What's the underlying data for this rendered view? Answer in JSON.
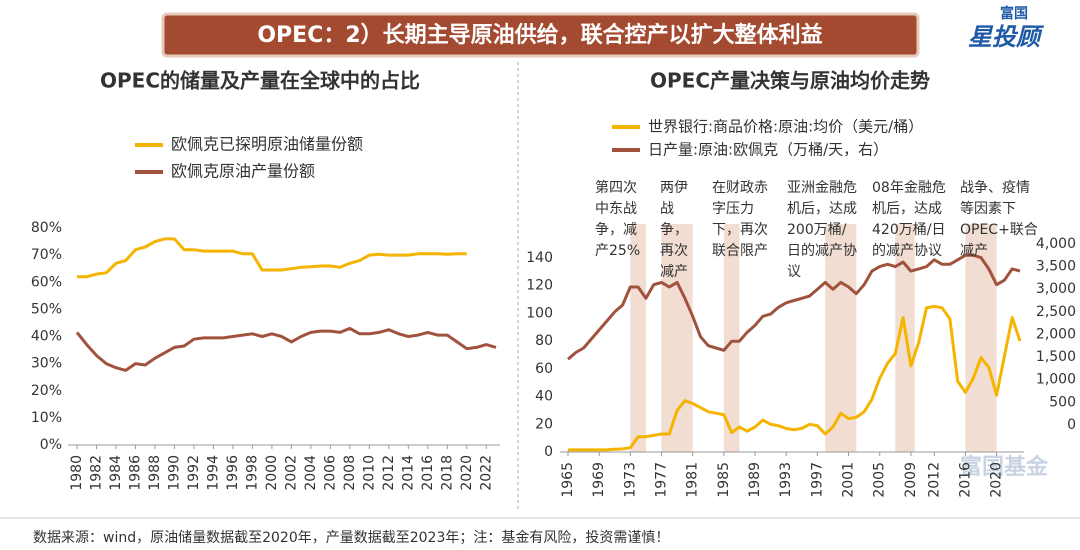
{
  "header": {
    "title": "OPEC：2）长期主导原油供给，联合控产以扩大整体利益",
    "logo_top": "富国",
    "logo_main": "星投顾"
  },
  "watermark": "富国基金",
  "footer": {
    "source": "数据来源：wind，原油储量数据截至2020年，产量数据截至2023年；注：基金有风险，投资需谨慎！"
  },
  "chart_data": [
    {
      "type": "line",
      "title": "OPEC的储量及产量在全球中的占比",
      "legend": "upper left",
      "x": [
        1980,
        1981,
        1982,
        1983,
        1984,
        1985,
        1986,
        1987,
        1988,
        1989,
        1990,
        1991,
        1992,
        1993,
        1994,
        1995,
        1996,
        1997,
        1998,
        1999,
        2000,
        2001,
        2002,
        2003,
        2004,
        2005,
        2006,
        2007,
        2008,
        2009,
        2010,
        2011,
        2012,
        2013,
        2014,
        2015,
        2016,
        2017,
        2018,
        2019,
        2020,
        2021,
        2022,
        2023
      ],
      "xlim": [
        1980,
        2023
      ],
      "xticks": [
        1980,
        1982,
        1984,
        1986,
        1988,
        1990,
        1992,
        1994,
        1996,
        1998,
        2000,
        2002,
        2004,
        2006,
        2008,
        2010,
        2012,
        2014,
        2016,
        2018,
        2020,
        2022
      ],
      "ylim": [
        0,
        80
      ],
      "yticks": [
        {
          "value": 0,
          "label": "0%"
        },
        {
          "value": 10,
          "label": "10%"
        },
        {
          "value": 20,
          "label": "20%"
        },
        {
          "value": 30,
          "label": "30%"
        },
        {
          "value": 40,
          "label": "40%"
        },
        {
          "value": 50,
          "label": "50%"
        },
        {
          "value": 60,
          "label": "60%"
        },
        {
          "value": 70,
          "label": "70%"
        },
        {
          "value": 80,
          "label": "80%"
        }
      ],
      "series": [
        {
          "name": "欧佩克已探明原油储量份额",
          "color": "#f5b400",
          "values": [
            62,
            62,
            63,
            63.5,
            67,
            68,
            72,
            73,
            75,
            76,
            76,
            72,
            72,
            71.5,
            71.5,
            71.5,
            71.5,
            70.5,
            70.5,
            64.5,
            64.5,
            64.5,
            65,
            65.5,
            65.7,
            66,
            66,
            65.5,
            67,
            68,
            70,
            70.3,
            70,
            70,
            70,
            70.5,
            70.5,
            70.5,
            70.3,
            70.5,
            70.5,
            null,
            null,
            null
          ]
        },
        {
          "name": "欧佩克原油产量份额",
          "color": "#a0523d",
          "values": [
            41.5,
            37,
            33,
            30,
            28.5,
            27.5,
            30,
            29.5,
            32,
            34,
            36,
            36.5,
            39,
            39.5,
            39.5,
            39.5,
            40,
            40.5,
            41,
            40,
            41,
            40,
            38,
            40,
            41.5,
            42,
            42,
            41.5,
            43,
            41,
            41,
            41.5,
            42.5,
            41,
            40,
            40.5,
            41.5,
            40.5,
            40.5,
            38,
            35.5,
            36,
            37,
            36
          ]
        }
      ]
    },
    {
      "type": "line",
      "title": "OPEC产量决策与原油均价走势",
      "legend": "upper left",
      "x": [
        1965,
        1966,
        1967,
        1968,
        1969,
        1970,
        1971,
        1972,
        1973,
        1974,
        1975,
        1976,
        1977,
        1978,
        1979,
        1980,
        1981,
        1982,
        1983,
        1984,
        1985,
        1986,
        1987,
        1988,
        1989,
        1990,
        1991,
        1992,
        1993,
        1994,
        1995,
        1996,
        1997,
        1998,
        1999,
        2000,
        2001,
        2002,
        2003,
        2004,
        2005,
        2006,
        2007,
        2008,
        2009,
        2010,
        2011,
        2012,
        2013,
        2014,
        2015,
        2016,
        2017,
        2018,
        2019,
        2020,
        2021,
        2022,
        2023
      ],
      "xlim": [
        1965,
        2023
      ],
      "xticks": [
        1965,
        1969,
        1973,
        1977,
        1981,
        1985,
        1989,
        1993,
        1997,
        2001,
        2005,
        2009,
        2012,
        2016,
        2020
      ],
      "ylim": [
        0,
        150
      ],
      "yticks": [
        0,
        20,
        40,
        60,
        80,
        100,
        120,
        140
      ],
      "y2lim": [
        -600,
        4000
      ],
      "y2ticks": [
        0,
        500,
        {
          "value": 1000,
          "label": "1,000"
        },
        {
          "value": 1500,
          "label": "1,500"
        },
        {
          "value": 2000,
          "label": "2,000"
        },
        {
          "value": 2500,
          "label": "2,500"
        },
        {
          "value": 3000,
          "label": "3,000"
        },
        {
          "value": 3500,
          "label": "3,500"
        },
        {
          "value": 4000,
          "label": "4,000"
        }
      ],
      "shade_color": "#f1ddd2",
      "shaded_periods": [
        {
          "start": 1973,
          "end": 1975,
          "label": "第四次中东战争，减产25%"
        },
        {
          "start": 1977,
          "end": 1981,
          "label": "两伊战争，再次减产"
        },
        {
          "start": 1985,
          "end": 1987,
          "label": "在财政赤字压力下，再次联合限产"
        },
        {
          "start": 1998,
          "end": 2002,
          "label": "亚洲金融危机后，达成200万桶/日的减产协议"
        },
        {
          "start": 2007,
          "end": 2009.5,
          "label": "08年金融危机后，达成420万桶/日的减产协议"
        },
        {
          "start": 2016,
          "end": 2020,
          "label": "战争、疫情等因素下OPEC+联合减产"
        }
      ],
      "series": [
        {
          "name": "世界银行:商品价格:原油:均价（美元/桶）",
          "color": "#f5b400",
          "values": [
            1.5,
            1.5,
            1.5,
            1.5,
            1.5,
            1.6,
            2,
            2.2,
            3,
            11,
            11,
            12,
            13,
            13,
            30,
            37,
            35,
            32,
            29,
            28,
            27,
            14,
            18,
            15,
            18,
            23,
            20,
            19,
            17,
            16,
            17,
            20,
            19,
            13,
            18,
            28,
            24,
            25,
            29,
            38,
            53,
            64,
            71,
            97,
            62,
            79,
            104,
            105,
            104,
            96,
            51,
            43,
            53,
            68,
            61,
            41,
            69,
            97,
            80
          ]
        },
        {
          "name": "日产量:原油:欧佩克（万桶/天，右）",
          "color": "#a0523d",
          "axis": "y2",
          "values": [
            1450,
            1600,
            1700,
            1900,
            2100,
            2300,
            2500,
            2650,
            3050,
            3050,
            2800,
            3100,
            3150,
            3050,
            3150,
            2800,
            2400,
            1950,
            1750,
            1700,
            1650,
            1850,
            1850,
            2050,
            2200,
            2400,
            2450,
            2600,
            2700,
            2750,
            2800,
            2850,
            3000,
            3150,
            3000,
            3150,
            3050,
            2900,
            3100,
            3400,
            3500,
            3550,
            3500,
            3600,
            3400,
            3450,
            3500,
            3650,
            3550,
            3550,
            3650,
            3750,
            3750,
            3700,
            3450,
            3100,
            3200,
            3450,
            3400
          ]
        }
      ]
    }
  ]
}
